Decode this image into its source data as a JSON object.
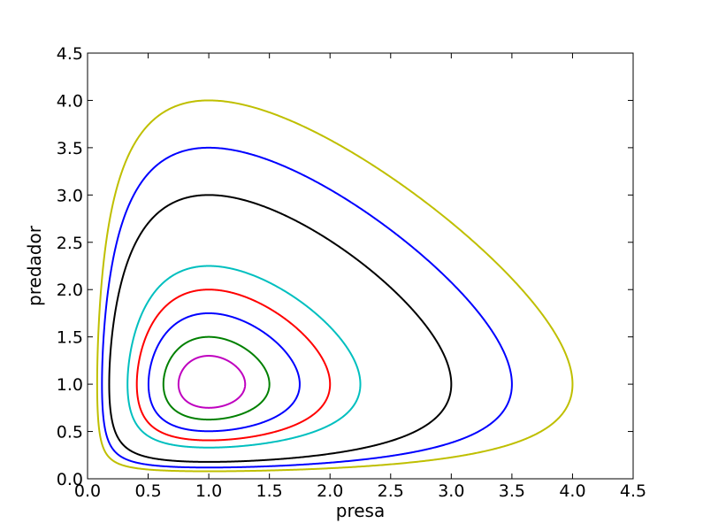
{
  "chart_data": {
    "type": "line",
    "title": "",
    "xlabel": "presa",
    "ylabel": "predador",
    "xlim": [
      0,
      4.5
    ],
    "ylim": [
      0,
      4.5
    ],
    "xticks": [
      "0.0",
      "0.5",
      "1.0",
      "1.5",
      "2.0",
      "2.5",
      "3.0",
      "3.5",
      "4.0",
      "4.5"
    ],
    "yticks": [
      "0.0",
      "0.5",
      "1.0",
      "1.5",
      "2.0",
      "2.5",
      "3.0",
      "3.5",
      "4.0",
      "4.5"
    ],
    "grid": false,
    "legend": "none",
    "model": "Lotka-Volterra closed orbits around equilibrium (1.0, 1.0)",
    "equilibrium": [
      1.0,
      1.0
    ],
    "series": [
      {
        "color": "#bfbf00",
        "ymax": 4.0,
        "xmax": 4.0
      },
      {
        "color": "#0000ff",
        "ymax": 3.5,
        "xmax": 3.5
      },
      {
        "color": "#000000",
        "ymax": 3.0,
        "xmax": 3.0
      },
      {
        "color": "#00bfbf",
        "ymax": 2.25,
        "xmax": 2.25
      },
      {
        "color": "#ff0000",
        "ymax": 2.0,
        "xmax": 2.0
      },
      {
        "color": "#0000ff",
        "ymax": 1.75,
        "xmax": 1.75
      },
      {
        "color": "#008000",
        "ymax": 1.5,
        "xmax": 1.5
      },
      {
        "color": "#bf00bf",
        "ymax": 1.3,
        "xmax": 1.3
      }
    ]
  }
}
